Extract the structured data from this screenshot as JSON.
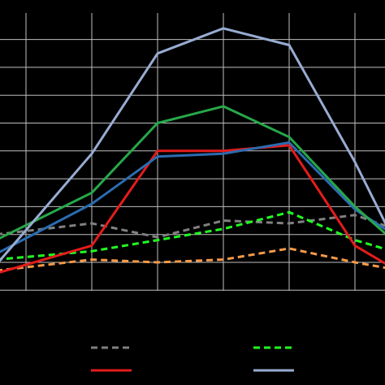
{
  "chart_data": {
    "type": "line",
    "background": "#000000",
    "grid": true,
    "grid_color": "#bfbfbf",
    "x": [
      1,
      2,
      3,
      4,
      5,
      6,
      7
    ],
    "ylim": [
      0,
      10
    ],
    "legend_placement": "bottom",
    "series": [
      {
        "color": "#808080",
        "dash": "dashed",
        "values": [
          1.0,
          1.4,
          0.9,
          1.5,
          1.4,
          1.7,
          1.1
        ]
      },
      {
        "color": "#22ff22",
        "dash": "dashed",
        "values": [
          0.1,
          0.4,
          0.8,
          1.2,
          1.8,
          0.8,
          0.3
        ]
      },
      {
        "color": "#f59a4a",
        "dash": "dashed",
        "values": [
          -0.3,
          0.1,
          0.0,
          0.1,
          0.5,
          0.0,
          -0.3
        ]
      },
      {
        "color": "#e51c1c",
        "dash": "solid",
        "values": [
          -0.4,
          0.6,
          4.0,
          4.0,
          4.2,
          0.6,
          -0.4
        ]
      },
      {
        "color": "#2b6cb0",
        "dash": "solid",
        "values": [
          0.3,
          2.1,
          3.8,
          3.9,
          4.3,
          1.9,
          0.8
        ]
      },
      {
        "color": "#27a84a",
        "dash": "solid",
        "values": [
          0.8,
          2.5,
          5.0,
          5.6,
          4.5,
          2.0,
          0.5
        ]
      },
      {
        "color": "#98acd2",
        "dash": "solid",
        "values": [
          -0.1,
          3.9,
          7.5,
          8.4,
          7.8,
          3.6,
          0.2
        ]
      }
    ]
  }
}
